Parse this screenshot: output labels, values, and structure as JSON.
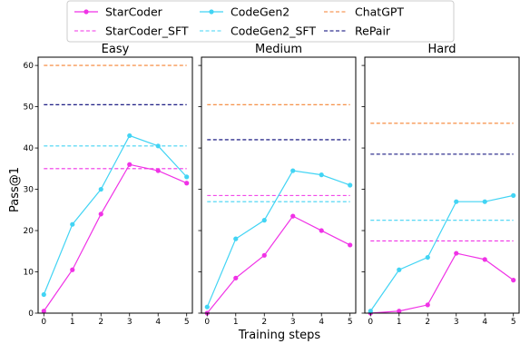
{
  "chart_data": {
    "type": "line",
    "ylabel": "Pass@1",
    "xlabel": "Training steps",
    "x": [
      0,
      1,
      2,
      3,
      4,
      5
    ],
    "xlim": [
      -0.2,
      5.2
    ],
    "ylim": [
      0,
      62
    ],
    "yticks": [
      0,
      10,
      20,
      30,
      40,
      50,
      60
    ],
    "grid": false,
    "legend_position": "top",
    "legend_entries": [
      {
        "label": "StarCoder",
        "style": "solid-marker",
        "color": "#f032e6"
      },
      {
        "label": "CodeGen2",
        "style": "solid-marker",
        "color": "#42d4f4"
      },
      {
        "label": "ChatGPT",
        "style": "dashed",
        "color": "#f58231"
      },
      {
        "label": "StarCoder_SFT",
        "style": "dashed",
        "color": "#f032e6"
      },
      {
        "label": "CodeGen2_SFT",
        "style": "dashed",
        "color": "#42d4f4"
      },
      {
        "label": "RePair",
        "style": "dashed",
        "color": "#000075"
      }
    ],
    "panels": [
      {
        "title": "Easy",
        "series": [
          {
            "name": "StarCoder",
            "values": [
              0.5,
              10.5,
              24,
              36,
              34.5,
              31.5
            ]
          },
          {
            "name": "CodeGen2",
            "values": [
              4.5,
              21.5,
              30,
              43,
              40.5,
              33
            ]
          }
        ],
        "baselines": [
          {
            "name": "StarCoder_SFT",
            "value": 35
          },
          {
            "name": "CodeGen2_SFT",
            "value": 40.5
          },
          {
            "name": "ChatGPT",
            "value": 60
          },
          {
            "name": "RePair",
            "value": 50.5
          }
        ]
      },
      {
        "title": "Medium",
        "series": [
          {
            "name": "StarCoder",
            "values": [
              0,
              8.5,
              14,
              23.5,
              20,
              16.5
            ]
          },
          {
            "name": "CodeGen2",
            "values": [
              1.5,
              18,
              22.5,
              34.5,
              33.5,
              31
            ]
          }
        ],
        "baselines": [
          {
            "name": "StarCoder_SFT",
            "value": 28.5
          },
          {
            "name": "CodeGen2_SFT",
            "value": 27
          },
          {
            "name": "ChatGPT",
            "value": 50.5
          },
          {
            "name": "RePair",
            "value": 42
          }
        ]
      },
      {
        "title": "Hard",
        "series": [
          {
            "name": "StarCoder",
            "values": [
              0,
              0.5,
              2,
              14.5,
              13,
              8
            ]
          },
          {
            "name": "CodeGen2",
            "values": [
              0.5,
              10.5,
              13.5,
              27,
              27,
              28.5
            ]
          }
        ],
        "baselines": [
          {
            "name": "StarCoder_SFT",
            "value": 17.5
          },
          {
            "name": "CodeGen2_SFT",
            "value": 22.5
          },
          {
            "name": "ChatGPT",
            "value": 46
          },
          {
            "name": "RePair",
            "value": 38.5
          }
        ]
      }
    ]
  }
}
